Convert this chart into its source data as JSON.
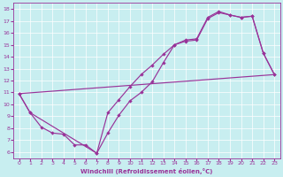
{
  "bg_color": "#c8eef0",
  "line_color": "#993399",
  "xlabel": "Windchill (Refroidissement éolien,°C)",
  "xlim": [
    -0.5,
    23.5
  ],
  "ylim": [
    5.5,
    18.5
  ],
  "xticks": [
    0,
    1,
    2,
    3,
    4,
    5,
    6,
    7,
    8,
    9,
    10,
    11,
    12,
    13,
    14,
    15,
    16,
    17,
    18,
    19,
    20,
    21,
    22,
    23
  ],
  "yticks": [
    6,
    7,
    8,
    9,
    10,
    11,
    12,
    13,
    14,
    15,
    16,
    17,
    18
  ],
  "curve1_x": [
    0,
    1,
    2,
    3,
    4,
    5,
    6,
    7,
    8,
    9,
    10,
    11,
    12,
    13,
    14,
    15,
    16,
    17,
    18,
    19,
    20,
    21,
    22,
    23
  ],
  "curve1_y": [
    10.9,
    9.3,
    8.1,
    7.6,
    7.5,
    6.6,
    6.6,
    5.9,
    7.6,
    9.1,
    10.3,
    11.0,
    11.9,
    13.5,
    15.0,
    15.3,
    15.4,
    17.2,
    17.7,
    17.5,
    17.3,
    17.4,
    14.3,
    12.5
  ],
  "curve2_x": [
    0,
    1,
    7,
    8,
    9,
    10,
    11,
    12,
    13,
    14,
    15,
    16,
    17,
    18,
    19,
    20,
    21,
    22,
    23
  ],
  "curve2_y": [
    10.9,
    9.3,
    5.9,
    9.3,
    10.4,
    11.5,
    12.5,
    13.3,
    14.2,
    15.0,
    15.4,
    15.5,
    17.3,
    17.8,
    17.5,
    17.3,
    17.4,
    14.3,
    12.5
  ],
  "line3_x": [
    0,
    23
  ],
  "line3_y": [
    10.9,
    12.5
  ],
  "xlabel_fontsize": 5.0,
  "tick_fontsize": 4.5
}
